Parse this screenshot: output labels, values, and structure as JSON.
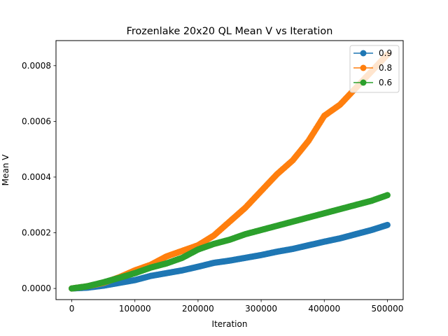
{
  "chart_data": {
    "type": "line",
    "title": "Frozenlake 20x20 QL Mean V vs Iteration",
    "xlabel": "Iteration",
    "ylabel": "Mean V",
    "xlim": [
      -25000,
      525000
    ],
    "ylim": [
      -4e-05,
      0.00089
    ],
    "x_ticks": [
      0,
      100000,
      200000,
      300000,
      400000,
      500000
    ],
    "x_tick_labels": [
      "0",
      "100000",
      "200000",
      "300000",
      "400000",
      "500000"
    ],
    "y_ticks": [
      0.0,
      0.0002,
      0.0004,
      0.0006,
      0.0008
    ],
    "y_tick_labels": [
      "0.0000",
      "0.0002",
      "0.0004",
      "0.0006",
      "0.0008"
    ],
    "grid": false,
    "legend_position": "top-right",
    "marker": "circle",
    "x": [
      0,
      25000,
      50000,
      75000,
      100000,
      125000,
      150000,
      175000,
      200000,
      225000,
      250000,
      275000,
      300000,
      325000,
      350000,
      375000,
      400000,
      425000,
      450000,
      475000,
      500000
    ],
    "series": [
      {
        "name": "0.9",
        "color": "#1f77b4",
        "values": [
          0.0,
          3e-06,
          1e-05,
          2e-05,
          3e-05,
          4.5e-05,
          5.5e-05,
          6.5e-05,
          7.8e-05,
          9.2e-05,
          0.0001,
          0.00011,
          0.00012,
          0.000132,
          0.000142,
          0.000155,
          0.000168,
          0.00018,
          0.000195,
          0.00021,
          0.000228
        ]
      },
      {
        "name": "0.8",
        "color": "#ff7f0e",
        "values": [
          0.0,
          8e-06,
          2e-05,
          4e-05,
          6.5e-05,
          8.5e-05,
          0.000115,
          0.000135,
          0.000155,
          0.00019,
          0.00024,
          0.00029,
          0.00035,
          0.00041,
          0.00046,
          0.00053,
          0.00062,
          0.00066,
          0.00072,
          0.00078,
          0.00084
        ]
      },
      {
        "name": "0.6",
        "color": "#2ca02c",
        "values": [
          0.0,
          8e-06,
          2.2e-05,
          3.8e-05,
          5.5e-05,
          7.5e-05,
          9e-05,
          0.00011,
          0.00014,
          0.00016,
          0.000175,
          0.000195,
          0.00021,
          0.000225,
          0.00024,
          0.000255,
          0.00027,
          0.000285,
          0.0003,
          0.000315,
          0.000335
        ]
      }
    ]
  }
}
